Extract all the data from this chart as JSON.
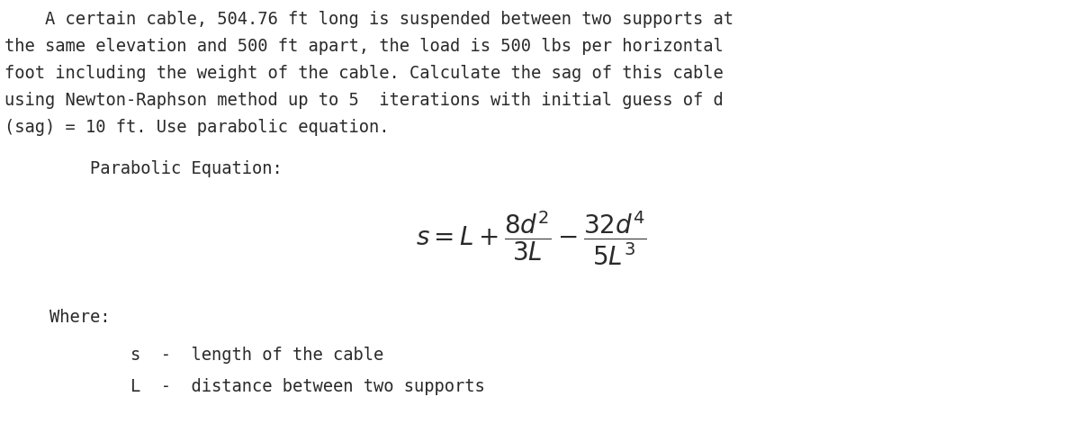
{
  "bg_color": "#ffffff",
  "text_color": "#2a2a2a",
  "figsize": [
    12.0,
    4.91
  ],
  "dpi": 100,
  "line1": "    A certain cable, 504.76 ft long is suspended between two supports at",
  "line2": "the same elevation and 500 ft apart, the load is 500 lbs per horizontal",
  "line3": "foot including the weight of the cable. Calculate the sag of this cable",
  "line4": "using Newton-Raphson method up to 5  iterations with initial guess of d",
  "line5": "(sag) = 10 ft. Use parabolic equation.",
  "parabolic_label": "    Parabolic Equation:",
  "where_label": "Where:",
  "def1": "        s  -  length of the cable",
  "def2": "        L  -  distance between two supports",
  "mono_fontsize": 13.5,
  "eq_fontsize": 20,
  "text_color_light": "#888888"
}
